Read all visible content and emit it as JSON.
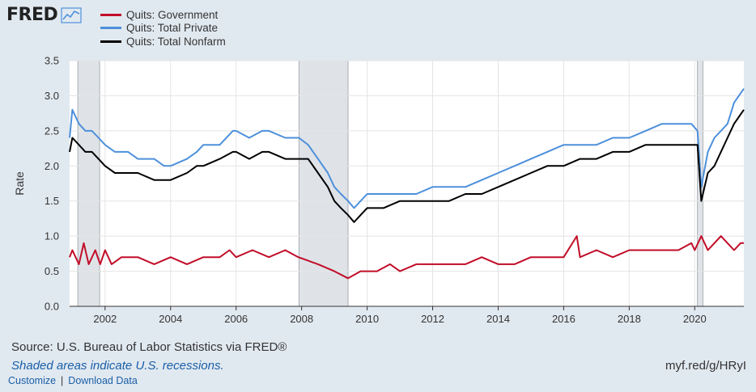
{
  "logo": {
    "text": "FRED",
    "icon": "line-chart-icon"
  },
  "legend": [
    {
      "label": "Quits: Government",
      "color": "#c10d28"
    },
    {
      "label": "Quits: Total Private",
      "color": "#4d90db"
    },
    {
      "label": "Quits: Total Nonfarm",
      "color": "#000000"
    }
  ],
  "footer": {
    "source": "Source: U.S. Bureau of Labor Statistics via FRED®",
    "note": "Shaded areas indicate U.S. recessions.",
    "customize": "Customize",
    "separator": "|",
    "download": "Download Data",
    "url": "myf.red/g/HRyI"
  },
  "chart_data": {
    "type": "line",
    "title": "",
    "xlabel": "",
    "ylabel": "Rate",
    "xlim": [
      2000.917,
      2021.5
    ],
    "ylim": [
      0,
      3.5
    ],
    "yticks": [
      0.0,
      0.5,
      1.0,
      1.5,
      2.0,
      2.5,
      3.0,
      3.5
    ],
    "ytick_labels": [
      "0.0",
      "0.5",
      "1.0",
      "1.5",
      "2.0",
      "2.5",
      "3.0",
      "3.5"
    ],
    "xticks": [
      2002,
      2004,
      2006,
      2008,
      2010,
      2012,
      2014,
      2016,
      2018,
      2020
    ],
    "xtick_labels": [
      "2002",
      "2004",
      "2006",
      "2008",
      "2010",
      "2012",
      "2014",
      "2016",
      "2018",
      "2020"
    ],
    "grid": true,
    "legend_position": "top-left",
    "recessions": [
      [
        2001.167,
        2001.833
      ],
      [
        2007.917,
        2009.417
      ],
      [
        2020.083,
        2020.25
      ]
    ],
    "series": [
      {
        "name": "Quits: Government",
        "color": "#c10d28",
        "points": [
          [
            2000.917,
            0.7
          ],
          [
            2001.0,
            0.8
          ],
          [
            2001.2,
            0.6
          ],
          [
            2001.35,
            0.9
          ],
          [
            2001.5,
            0.6
          ],
          [
            2001.7,
            0.8
          ],
          [
            2001.85,
            0.6
          ],
          [
            2002.0,
            0.8
          ],
          [
            2002.2,
            0.6
          ],
          [
            2002.5,
            0.7
          ],
          [
            2003.0,
            0.7
          ],
          [
            2003.5,
            0.6
          ],
          [
            2004.0,
            0.7
          ],
          [
            2004.5,
            0.6
          ],
          [
            2005.0,
            0.7
          ],
          [
            2005.5,
            0.7
          ],
          [
            2005.8,
            0.8
          ],
          [
            2006.0,
            0.7
          ],
          [
            2006.5,
            0.8
          ],
          [
            2007.0,
            0.7
          ],
          [
            2007.5,
            0.8
          ],
          [
            2007.9,
            0.7
          ],
          [
            2008.5,
            0.6
          ],
          [
            2009.0,
            0.5
          ],
          [
            2009.417,
            0.4
          ],
          [
            2009.8,
            0.5
          ],
          [
            2010.3,
            0.5
          ],
          [
            2010.7,
            0.6
          ],
          [
            2011.0,
            0.5
          ],
          [
            2011.5,
            0.6
          ],
          [
            2012.0,
            0.6
          ],
          [
            2012.5,
            0.6
          ],
          [
            2013.0,
            0.6
          ],
          [
            2013.5,
            0.7
          ],
          [
            2014.0,
            0.6
          ],
          [
            2014.5,
            0.6
          ],
          [
            2015.0,
            0.7
          ],
          [
            2015.5,
            0.7
          ],
          [
            2016.0,
            0.7
          ],
          [
            2016.4,
            1.0
          ],
          [
            2016.5,
            0.7
          ],
          [
            2017.0,
            0.8
          ],
          [
            2017.5,
            0.7
          ],
          [
            2018.0,
            0.8
          ],
          [
            2018.5,
            0.8
          ],
          [
            2019.0,
            0.8
          ],
          [
            2019.5,
            0.8
          ],
          [
            2019.9,
            0.9
          ],
          [
            2020.0,
            0.8
          ],
          [
            2020.2,
            1.0
          ],
          [
            2020.4,
            0.8
          ],
          [
            2020.6,
            0.9
          ],
          [
            2020.8,
            1.0
          ],
          [
            2021.0,
            0.9
          ],
          [
            2021.2,
            0.8
          ],
          [
            2021.4,
            0.9
          ],
          [
            2021.5,
            0.9
          ]
        ]
      },
      {
        "name": "Quits: Total Private",
        "color": "#4d90db",
        "points": [
          [
            2000.917,
            2.4
          ],
          [
            2001.0,
            2.8
          ],
          [
            2001.2,
            2.6
          ],
          [
            2001.4,
            2.5
          ],
          [
            2001.6,
            2.5
          ],
          [
            2001.8,
            2.4
          ],
          [
            2002.0,
            2.3
          ],
          [
            2002.3,
            2.2
          ],
          [
            2002.7,
            2.2
          ],
          [
            2003.0,
            2.1
          ],
          [
            2003.5,
            2.1
          ],
          [
            2003.8,
            2.0
          ],
          [
            2004.0,
            2.0
          ],
          [
            2004.5,
            2.1
          ],
          [
            2004.8,
            2.2
          ],
          [
            2005.0,
            2.3
          ],
          [
            2005.5,
            2.3
          ],
          [
            2005.9,
            2.5
          ],
          [
            2006.0,
            2.5
          ],
          [
            2006.4,
            2.4
          ],
          [
            2006.8,
            2.5
          ],
          [
            2007.0,
            2.5
          ],
          [
            2007.5,
            2.4
          ],
          [
            2007.917,
            2.4
          ],
          [
            2008.2,
            2.3
          ],
          [
            2008.5,
            2.1
          ],
          [
            2008.8,
            1.9
          ],
          [
            2009.0,
            1.7
          ],
          [
            2009.2,
            1.6
          ],
          [
            2009.417,
            1.5
          ],
          [
            2009.6,
            1.4
          ],
          [
            2009.8,
            1.5
          ],
          [
            2010.0,
            1.6
          ],
          [
            2010.5,
            1.6
          ],
          [
            2011.0,
            1.6
          ],
          [
            2011.5,
            1.6
          ],
          [
            2012.0,
            1.7
          ],
          [
            2012.5,
            1.7
          ],
          [
            2013.0,
            1.7
          ],
          [
            2013.5,
            1.8
          ],
          [
            2014.0,
            1.9
          ],
          [
            2014.5,
            2.0
          ],
          [
            2015.0,
            2.1
          ],
          [
            2015.5,
            2.2
          ],
          [
            2016.0,
            2.3
          ],
          [
            2016.5,
            2.3
          ],
          [
            2017.0,
            2.3
          ],
          [
            2017.5,
            2.4
          ],
          [
            2018.0,
            2.4
          ],
          [
            2018.5,
            2.5
          ],
          [
            2019.0,
            2.6
          ],
          [
            2019.5,
            2.6
          ],
          [
            2019.9,
            2.6
          ],
          [
            2020.083,
            2.5
          ],
          [
            2020.2,
            1.7
          ],
          [
            2020.4,
            2.2
          ],
          [
            2020.6,
            2.4
          ],
          [
            2020.8,
            2.5
          ],
          [
            2021.0,
            2.6
          ],
          [
            2021.2,
            2.9
          ],
          [
            2021.35,
            3.0
          ],
          [
            2021.5,
            3.1
          ]
        ]
      },
      {
        "name": "Quits: Total Nonfarm",
        "color": "#000000",
        "points": [
          [
            2000.917,
            2.2
          ],
          [
            2001.0,
            2.4
          ],
          [
            2001.2,
            2.3
          ],
          [
            2001.4,
            2.2
          ],
          [
            2001.6,
            2.2
          ],
          [
            2001.8,
            2.1
          ],
          [
            2002.0,
            2.0
          ],
          [
            2002.3,
            1.9
          ],
          [
            2002.7,
            1.9
          ],
          [
            2003.0,
            1.9
          ],
          [
            2003.5,
            1.8
          ],
          [
            2003.8,
            1.8
          ],
          [
            2004.0,
            1.8
          ],
          [
            2004.5,
            1.9
          ],
          [
            2004.8,
            2.0
          ],
          [
            2005.0,
            2.0
          ],
          [
            2005.5,
            2.1
          ],
          [
            2005.9,
            2.2
          ],
          [
            2006.0,
            2.2
          ],
          [
            2006.4,
            2.1
          ],
          [
            2006.8,
            2.2
          ],
          [
            2007.0,
            2.2
          ],
          [
            2007.5,
            2.1
          ],
          [
            2007.917,
            2.1
          ],
          [
            2008.2,
            2.1
          ],
          [
            2008.5,
            1.9
          ],
          [
            2008.8,
            1.7
          ],
          [
            2009.0,
            1.5
          ],
          [
            2009.2,
            1.4
          ],
          [
            2009.417,
            1.3
          ],
          [
            2009.6,
            1.2
          ],
          [
            2009.8,
            1.3
          ],
          [
            2010.0,
            1.4
          ],
          [
            2010.5,
            1.4
          ],
          [
            2011.0,
            1.5
          ],
          [
            2011.5,
            1.5
          ],
          [
            2012.0,
            1.5
          ],
          [
            2012.5,
            1.5
          ],
          [
            2013.0,
            1.6
          ],
          [
            2013.5,
            1.6
          ],
          [
            2014.0,
            1.7
          ],
          [
            2014.5,
            1.8
          ],
          [
            2015.0,
            1.9
          ],
          [
            2015.5,
            2.0
          ],
          [
            2016.0,
            2.0
          ],
          [
            2016.5,
            2.1
          ],
          [
            2017.0,
            2.1
          ],
          [
            2017.5,
            2.2
          ],
          [
            2018.0,
            2.2
          ],
          [
            2018.5,
            2.3
          ],
          [
            2019.0,
            2.3
          ],
          [
            2019.5,
            2.3
          ],
          [
            2019.9,
            2.3
          ],
          [
            2020.083,
            2.3
          ],
          [
            2020.2,
            1.5
          ],
          [
            2020.4,
            1.9
          ],
          [
            2020.6,
            2.0
          ],
          [
            2020.8,
            2.2
          ],
          [
            2021.0,
            2.4
          ],
          [
            2021.2,
            2.6
          ],
          [
            2021.35,
            2.7
          ],
          [
            2021.5,
            2.8
          ]
        ]
      }
    ]
  }
}
